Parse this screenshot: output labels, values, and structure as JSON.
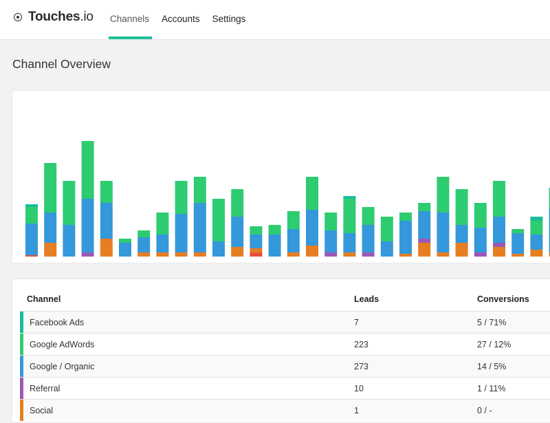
{
  "app": {
    "brand_bold": "Touches",
    "brand_light": ".io",
    "logo_icon": "target-icon"
  },
  "nav": {
    "tabs": [
      {
        "label": "Channels",
        "active": true
      },
      {
        "label": "Accounts",
        "active": false
      },
      {
        "label": "Settings",
        "active": false
      }
    ],
    "accent": "#1fbf99"
  },
  "page": {
    "title": "Channel Overview"
  },
  "chart_data": {
    "type": "bar",
    "stacked": true,
    "grid": false,
    "legend": "none",
    "series_colors": {
      "Facebook Ads": "#1abc9c",
      "Google AdWords": "#2ecc71",
      "Google / Organic": "#3498db",
      "Referral": "#9b59b6",
      "Social": "#e67e22",
      "Other": "#e74c3c"
    },
    "columns": [
      [
        [
          "Other",
          2
        ],
        [
          "Google / Organic",
          46
        ],
        [
          "Google AdWords",
          24
        ],
        [
          "Facebook Ads",
          4
        ]
      ],
      [
        [
          "Social",
          20
        ],
        [
          "Google / Organic",
          44
        ],
        [
          "Google AdWords",
          72
        ]
      ],
      [
        [
          "Google / Organic",
          46
        ],
        [
          "Google AdWords",
          64
        ]
      ],
      [
        [
          "Referral",
          6
        ],
        [
          "Google / Organic",
          78
        ],
        [
          "Google AdWords",
          84
        ]
      ],
      [
        [
          "Social",
          26
        ],
        [
          "Google / Organic",
          52
        ],
        [
          "Google AdWords",
          32
        ]
      ],
      [
        [
          "Google / Organic",
          20
        ],
        [
          "Google AdWords",
          6
        ]
      ],
      [
        [
          "Social",
          6
        ],
        [
          "Google / Organic",
          22
        ],
        [
          "Google AdWords",
          10
        ]
      ],
      [
        [
          "Social",
          6
        ],
        [
          "Google / Organic",
          26
        ],
        [
          "Google AdWords",
          32
        ]
      ],
      [
        [
          "Social",
          6
        ],
        [
          "Google / Organic",
          56
        ],
        [
          "Google AdWords",
          48
        ]
      ],
      [
        [
          "Social",
          6
        ],
        [
          "Google / Organic",
          72
        ],
        [
          "Google AdWords",
          38
        ]
      ],
      [
        [
          "Google / Organic",
          22
        ],
        [
          "Google AdWords",
          62
        ]
      ],
      [
        [
          "Social",
          14
        ],
        [
          "Google / Organic",
          44
        ],
        [
          "Google AdWords",
          40
        ]
      ],
      [
        [
          "Other",
          6
        ],
        [
          "Social",
          6
        ],
        [
          "Google / Organic",
          20
        ],
        [
          "Google AdWords",
          12
        ]
      ],
      [
        [
          "Google / Organic",
          32
        ],
        [
          "Google AdWords",
          14
        ]
      ],
      [
        [
          "Social",
          6
        ],
        [
          "Google / Organic",
          34
        ],
        [
          "Google AdWords",
          26
        ]
      ],
      [
        [
          "Social",
          16
        ],
        [
          "Google / Organic",
          52
        ],
        [
          "Google AdWords",
          48
        ]
      ],
      [
        [
          "Referral",
          6
        ],
        [
          "Google / Organic",
          32
        ],
        [
          "Google AdWords",
          26
        ]
      ],
      [
        [
          "Social",
          6
        ],
        [
          "Google / Organic",
          28
        ],
        [
          "Google AdWords",
          50
        ],
        [
          "Facebook Ads",
          4
        ]
      ],
      [
        [
          "Referral",
          6
        ],
        [
          "Google / Organic",
          40
        ],
        [
          "Google AdWords",
          26
        ]
      ],
      [
        [
          "Google / Organic",
          22
        ],
        [
          "Google AdWords",
          36
        ]
      ],
      [
        [
          "Social",
          4
        ],
        [
          "Google / Organic",
          48
        ],
        [
          "Google AdWords",
          12
        ]
      ],
      [
        [
          "Social",
          20
        ],
        [
          "Referral",
          6
        ],
        [
          "Google / Organic",
          40
        ],
        [
          "Google AdWords",
          12
        ]
      ],
      [
        [
          "Social",
          6
        ],
        [
          "Google / Organic",
          58
        ],
        [
          "Google AdWords",
          52
        ]
      ],
      [
        [
          "Social",
          20
        ],
        [
          "Google / Organic",
          26
        ],
        [
          "Google AdWords",
          52
        ]
      ],
      [
        [
          "Referral",
          6
        ],
        [
          "Google / Organic",
          36
        ],
        [
          "Google AdWords",
          36
        ]
      ],
      [
        [
          "Social",
          14
        ],
        [
          "Referral",
          6
        ],
        [
          "Google / Organic",
          38
        ],
        [
          "Google AdWords",
          52
        ]
      ],
      [
        [
          "Social",
          4
        ],
        [
          "Google / Organic",
          30
        ],
        [
          "Google AdWords",
          6
        ]
      ],
      [
        [
          "Social",
          10
        ],
        [
          "Google / Organic",
          22
        ],
        [
          "Google AdWords",
          20
        ],
        [
          "Facebook Ads",
          6
        ]
      ],
      [
        [
          "Social",
          6
        ],
        [
          "Google / Organic",
          64
        ],
        [
          "Google AdWords",
          26
        ],
        [
          "Facebook Ads",
          4
        ]
      ]
    ]
  },
  "table": {
    "headers": {
      "channel": "Channel",
      "leads": "Leads",
      "conversions": "Conversions"
    },
    "rows": [
      {
        "channel": "Facebook Ads",
        "leads": "7",
        "conversions": "5 / 71%",
        "color": "#1abc9c"
      },
      {
        "channel": "Google AdWords",
        "leads": "223",
        "conversions": "27 / 12%",
        "color": "#2ecc71"
      },
      {
        "channel": "Google / Organic",
        "leads": "273",
        "conversions": "14 / 5%",
        "color": "#3498db"
      },
      {
        "channel": "Referral",
        "leads": "10",
        "conversions": "1 / 11%",
        "color": "#9b59b6"
      },
      {
        "channel": "Social",
        "leads": "1",
        "conversions": "0 / -",
        "color": "#e67e22"
      }
    ]
  }
}
